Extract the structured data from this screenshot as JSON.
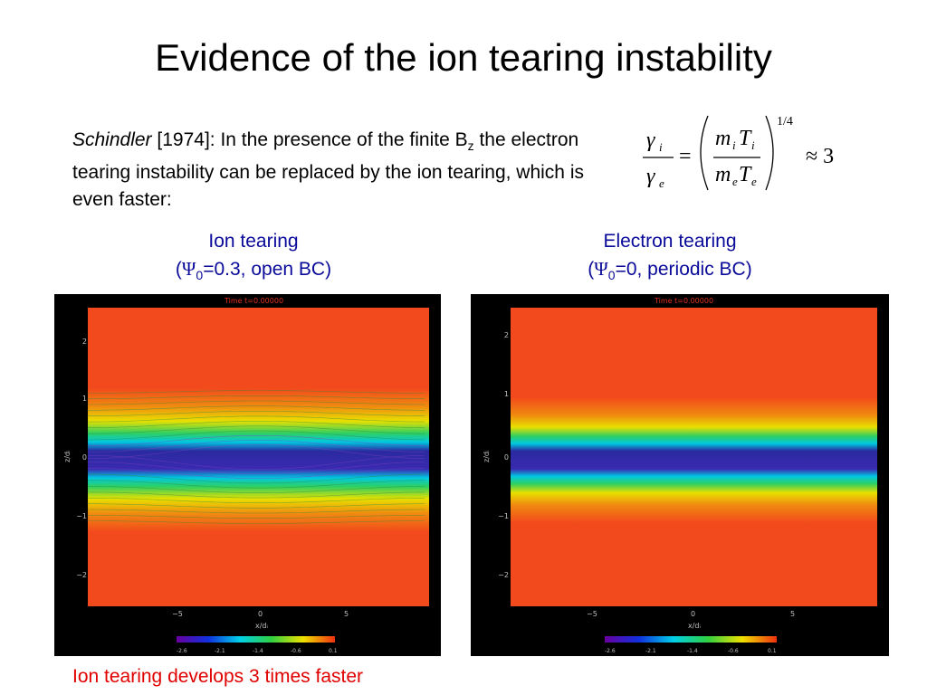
{
  "slide": {
    "title": "Evidence of the ion tearing instability",
    "intro": {
      "author": "Schindler",
      "before_sub": "[1974]: In the presence of the finite B",
      "sub": "z",
      "after_sub": " the electron tearing instability can be replaced by the ion tearing, which is even faster:"
    },
    "formula": {
      "gamma": "γ",
      "sub_i": "i",
      "sub_e": "e",
      "eq": "=",
      "m": "m",
      "T": "T",
      "exponent": "1/4",
      "approx": "≈ 3"
    },
    "footer": "Ion tearing develops 3 times faster"
  },
  "panels": [
    {
      "title_line1": "Ion tearing",
      "psi_symbol": "Ψ",
      "psi_sub": "0",
      "params": "=0.3, open BC)",
      "time_label": "Time  t=0.00000",
      "xlabel": "x/dᵢ",
      "ylabel": "z/dᵢ",
      "xticks": [
        "−5",
        "0",
        "5"
      ],
      "yticks": [
        "2",
        "1",
        "0",
        "−1",
        "−2"
      ],
      "colorbar_ticks": [
        "-2.6",
        "-2.1",
        "-1.4",
        "-0.6",
        "0.1"
      ]
    },
    {
      "title_line1": "Electron tearing",
      "psi_symbol": "Ψ",
      "psi_sub": "0",
      "params": "=0, periodic BC)",
      "time_label": "Time  t=0.00000",
      "xlabel": "x/dᵢ",
      "ylabel": "z/dᵢ",
      "xticks": [
        "−5",
        "0",
        "5"
      ],
      "yticks": [
        "2",
        "1",
        "0",
        "−1",
        "−2"
      ],
      "colorbar_ticks": [
        "-2.6",
        "-2.1",
        "-1.4",
        "-0.6",
        "0.1"
      ]
    }
  ],
  "colors": {
    "field_background": "#f24a1c",
    "current_sheet_core": "#2a2aa0",
    "cyan": "#00c8e0",
    "green": "#30d060",
    "yellow": "#e8e000",
    "axis_text": "#c0c0c0",
    "time_label": "#e03020",
    "panel_title": "#0a0a9a",
    "footer_text": "#e00000"
  }
}
